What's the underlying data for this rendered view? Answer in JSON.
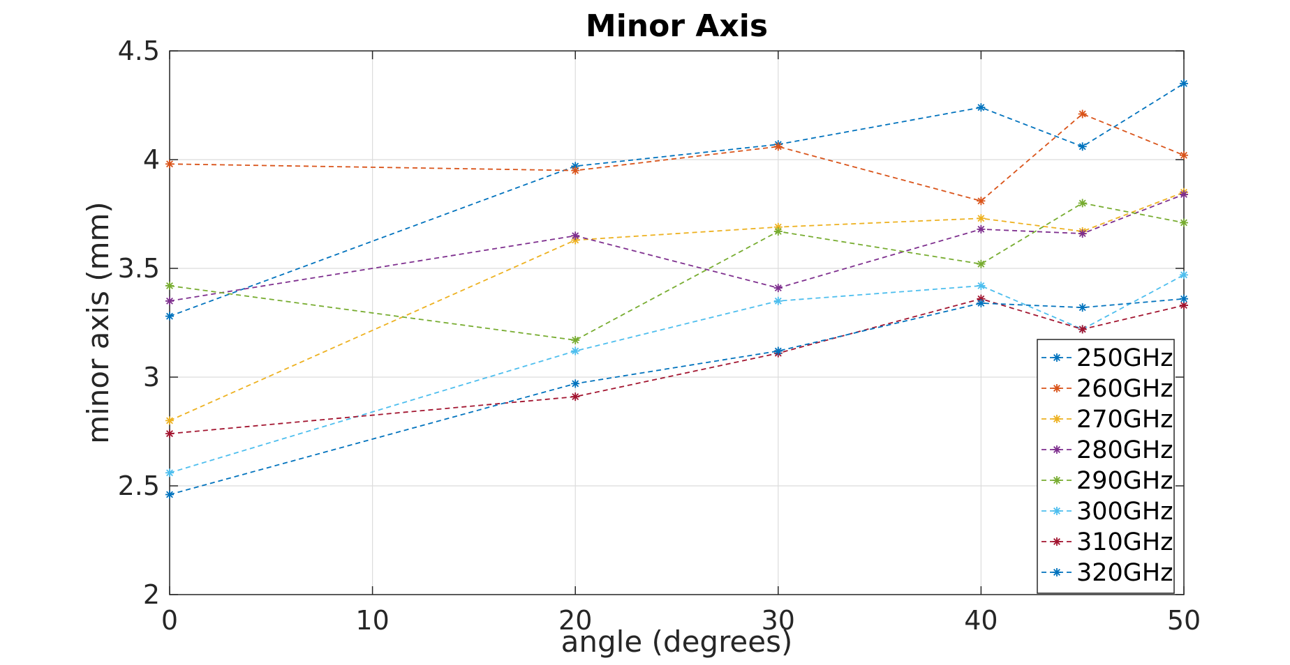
{
  "chart_data": {
    "type": "line",
    "title": "Minor Axis",
    "xlabel": "angle (degrees)",
    "ylabel": "minor axis (mm)",
    "xlim": [
      0,
      50
    ],
    "ylim": [
      2,
      4.5
    ],
    "xticks": [
      0,
      10,
      20,
      30,
      40,
      50
    ],
    "yticks": [
      2,
      2.5,
      3,
      3.5,
      4,
      4.5
    ],
    "xtick_labels": [
      "0",
      "10",
      "20",
      "30",
      "40",
      "50"
    ],
    "ytick_labels": [
      "2",
      "2.5",
      "3",
      "3.5",
      "4",
      "4.5"
    ],
    "grid": true,
    "legend_position": "bottom-right",
    "line_style": "dashed",
    "marker": "*",
    "x": [
      0,
      20,
      30,
      40,
      45,
      50
    ],
    "series": [
      {
        "name": "250GHz",
        "color": "#0072BD",
        "values": [
          3.28,
          3.97,
          4.07,
          4.24,
          4.06,
          4.35
        ]
      },
      {
        "name": "260GHz",
        "color": "#D95319",
        "values": [
          3.98,
          3.95,
          4.06,
          3.81,
          4.21,
          4.02
        ]
      },
      {
        "name": "270GHz",
        "color": "#EDB120",
        "values": [
          2.8,
          3.63,
          3.69,
          3.73,
          3.67,
          3.85
        ]
      },
      {
        "name": "280GHz",
        "color": "#7E2F8E",
        "values": [
          3.35,
          3.65,
          3.41,
          3.68,
          3.66,
          3.84
        ]
      },
      {
        "name": "290GHz",
        "color": "#77AC30",
        "values": [
          3.42,
          3.17,
          3.67,
          3.52,
          3.8,
          3.71
        ]
      },
      {
        "name": "300GHz",
        "color": "#4DBEEE",
        "values": [
          2.56,
          3.12,
          3.35,
          3.42,
          3.22,
          3.47
        ]
      },
      {
        "name": "310GHz",
        "color": "#A2142F",
        "values": [
          2.74,
          2.91,
          3.11,
          3.36,
          3.22,
          3.33
        ]
      },
      {
        "name": "320GHz",
        "color": "#0072BD",
        "values": [
          2.46,
          2.97,
          3.12,
          3.34,
          3.32,
          3.36
        ]
      }
    ]
  }
}
